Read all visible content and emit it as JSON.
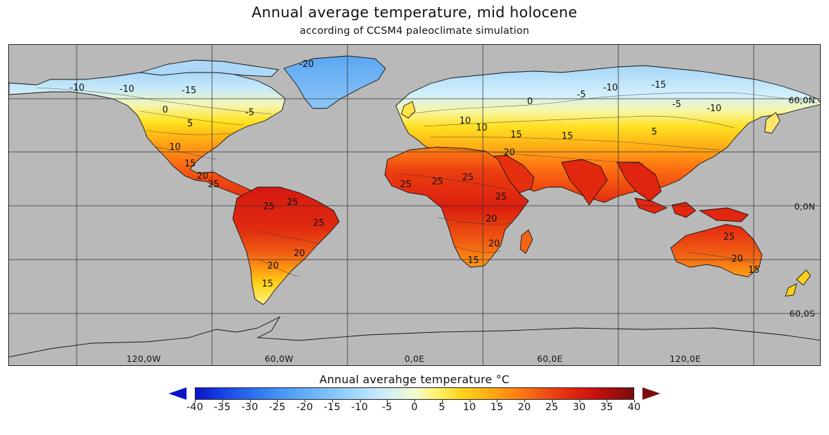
{
  "title": "Annual average temperature, mid holocene",
  "subtitle": "according of CCSM4 paleoclimate simulation",
  "map": {
    "projection": "equirectangular",
    "background_color": "#b9b9b9",
    "gridline_color": "#222222",
    "coastline_color": "#111111",
    "lon_labels": [
      "120,0W",
      "60,0W",
      "0,0E",
      "60,0E",
      "120,0E"
    ],
    "lat_labels": [
      "60,0N",
      "0,0N",
      "60,0S"
    ],
    "contour_labels": {
      "north_america": [
        "-10",
        "-10",
        "-15",
        "-20",
        "-5",
        "0",
        "5",
        "10",
        "15",
        "20",
        "25"
      ],
      "south_america": [
        "25",
        "25",
        "20",
        "20",
        "25",
        "15"
      ],
      "eurasia": [
        "-5",
        "-10",
        "-15",
        "-10",
        "-5",
        "0",
        "5",
        "10",
        "15",
        "10",
        "15",
        "20"
      ],
      "africa": [
        "25",
        "25",
        "25",
        "25",
        "20",
        "20",
        "15"
      ],
      "australia": [
        "25",
        "20",
        "15"
      ]
    }
  },
  "colorbar": {
    "title": "Annual averahge temperature °C",
    "min": -40,
    "max": 40,
    "ticks": [
      "-40",
      "-35",
      "-30",
      "-25",
      "-20",
      "-15",
      "-10",
      "-5",
      "0",
      "5",
      "10",
      "15",
      "20",
      "25",
      "30",
      "35",
      "40"
    ],
    "extend": "both",
    "low_color": "#0a14c8",
    "high_color": "#7a0c0c"
  }
}
